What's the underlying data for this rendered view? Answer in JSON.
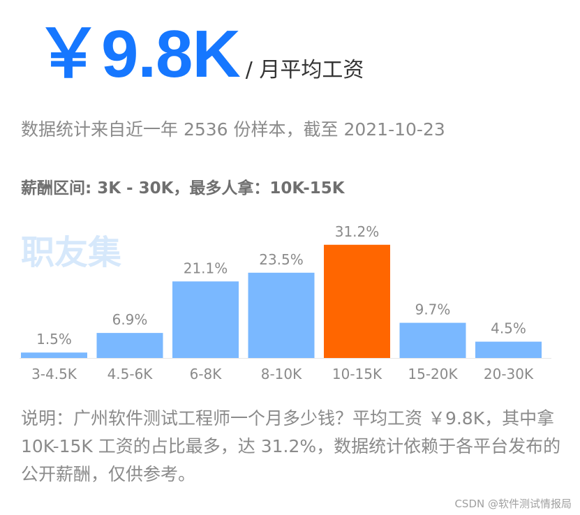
{
  "header": {
    "salary": "￥9.8K",
    "unit": "/ 月平均工资",
    "subtitle": "数据统计来自近一年 2536 份样本，截至 2021-10-23",
    "range_text": "薪酬区间: 3K - 30K，最多人拿：10K-15K"
  },
  "watermark": "职友集",
  "chart_data": {
    "type": "bar",
    "categories": [
      "3-4.5K",
      "4.5-6K",
      "6-8K",
      "8-10K",
      "10-15K",
      "15-20K",
      "20-30K"
    ],
    "values": [
      1.5,
      6.9,
      21.1,
      23.5,
      31.2,
      9.7,
      4.5
    ],
    "labels": [
      "1.5%",
      "6.9%",
      "21.1%",
      "23.5%",
      "31.2%",
      "9.7%",
      "4.5%"
    ],
    "highlight_index": 4,
    "colors": {
      "bar": "#7ab8ff",
      "highlight": "#ff6600"
    },
    "title": "",
    "xlabel": "",
    "ylabel": ""
  },
  "note": "说明：广州软件测试工程师一个月多少钱？平均工资 ￥9.8K，其中拿 10K-15K 工资的占比最多，达 31.2%，数据统计依赖于各平台发布的公开薪酬，仅供参考。",
  "credit": "CSDN @软件测试情报局"
}
